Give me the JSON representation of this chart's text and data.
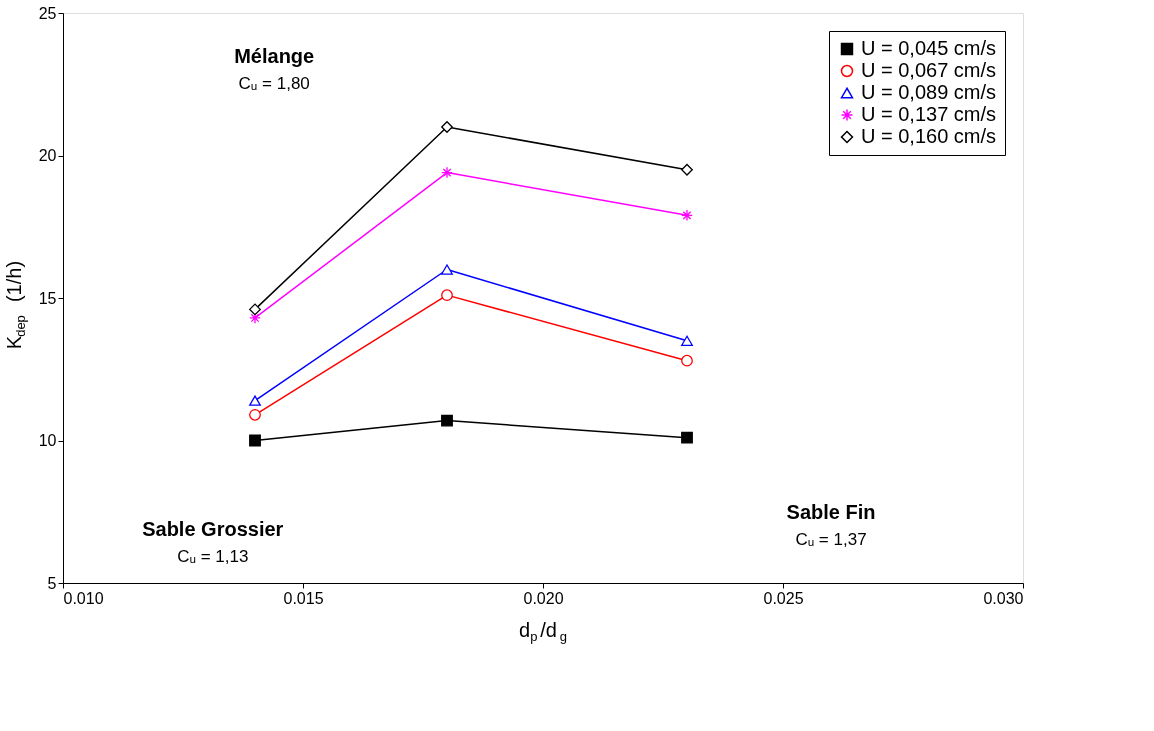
{
  "chart_data": {
    "type": "line",
    "xlabel": "d$_{p}$/d$_{g}$",
    "ylabel": "K$_{dep}$ (1/h)",
    "x": [
      0.014,
      0.018,
      0.023
    ],
    "series": [
      {
        "name": "U = 0,045 cm/s",
        "color": "#000000",
        "marker": "square",
        "values": [
          10.0,
          10.7,
          10.1
        ]
      },
      {
        "name": "U = 0,067 cm/s",
        "color": "#ff0000",
        "marker": "circle",
        "values": [
          10.9,
          15.1,
          12.8
        ]
      },
      {
        "name": "U = 0,089 cm/s",
        "color": "#0000ff",
        "marker": "triangle",
        "values": [
          11.4,
          16.0,
          13.5
        ]
      },
      {
        "name": "U = 0,137 cm/s",
        "color": "#ff00ff",
        "marker": "cross",
        "values": [
          14.3,
          19.4,
          17.9
        ]
      },
      {
        "name": "U = 0,160 cm/s",
        "color": "#000000",
        "marker": "diamond",
        "values": [
          14.6,
          21.0,
          19.5
        ]
      }
    ],
    "xlim": [
      0.01,
      0.03
    ],
    "xticks": [
      {
        "value": 0.01,
        "label": "0.010"
      },
      {
        "value": 0.015,
        "label": "0.015"
      },
      {
        "value": 0.02,
        "label": "0.020"
      },
      {
        "value": 0.025,
        "label": "0.025"
      },
      {
        "value": 0.03,
        "label": "0.030"
      }
    ],
    "ylim": [
      5,
      25
    ],
    "yticks": [
      5,
      10,
      15,
      20,
      25
    ],
    "grid": false,
    "legend": "top right",
    "line_style": "solid",
    "annotations": [
      "Mélange\nCᵤ = 1,80",
      "Sable Grossier\nCᵤ = 1,13",
      "Sable Fin\nCᵤ = 1,37"
    ]
  }
}
